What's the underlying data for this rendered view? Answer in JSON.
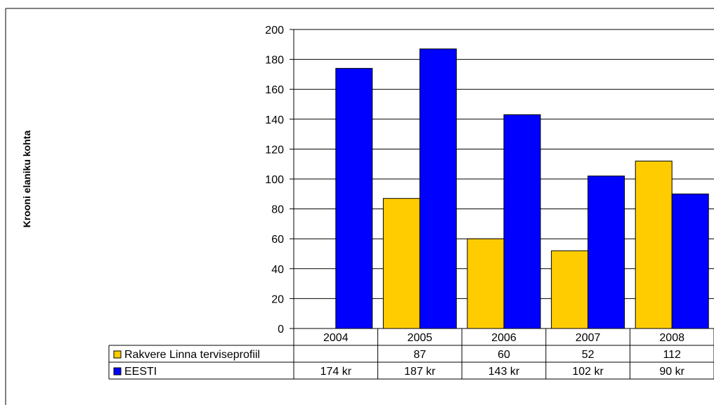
{
  "chart_data": {
    "type": "bar",
    "title": "",
    "xlabel": "",
    "ylabel": "Krooni elaniku kohta",
    "ylim": [
      0,
      200
    ],
    "ytick_step": 20,
    "yticks": [
      "0",
      "20",
      "40",
      "60",
      "80",
      "100",
      "120",
      "140",
      "160",
      "180",
      "200"
    ],
    "grid": true,
    "legend": "data-table",
    "categories": [
      "2004",
      "2005",
      "2006",
      "2007",
      "2008"
    ],
    "series": [
      {
        "name": "Rakvere Linna terviseprofiil",
        "color": "#FFCC00",
        "values": [
          null,
          87,
          60,
          52,
          112
        ],
        "table_labels": [
          "",
          "87",
          "60",
          "52",
          "112"
        ]
      },
      {
        "name": "EESTI",
        "color": "#0000FF",
        "values": [
          174,
          187,
          143,
          102,
          90
        ],
        "table_labels": [
          "174 kr",
          "187 kr",
          "143 kr",
          "102 kr",
          "90 kr"
        ]
      }
    ]
  }
}
